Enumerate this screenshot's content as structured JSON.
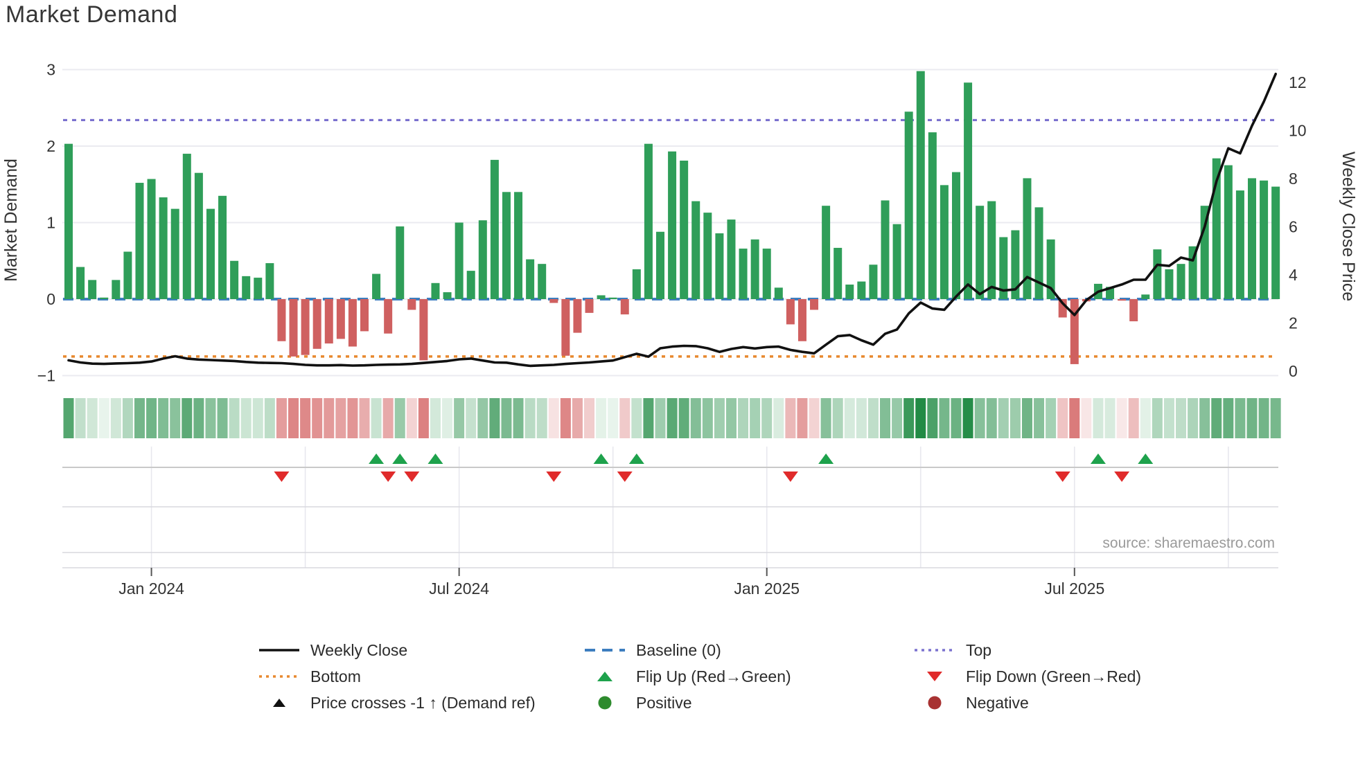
{
  "title": "Market Demand",
  "source_note": "source: sharemaestro.com",
  "axes": {
    "left_label": "Market Demand",
    "right_label": "Weekly Close Price",
    "left_ticks": [
      3,
      2,
      1,
      0,
      -1
    ],
    "right_ticks": [
      12,
      10,
      8,
      6,
      4,
      2,
      0
    ],
    "x_ticks": [
      "Jan 2024",
      "Jul 2024",
      "Jan 2025",
      "Jul 2025"
    ]
  },
  "colors": {
    "bar_positive": "#2f9e59",
    "bar_negative": "#cf6060",
    "weekly_close": "#111111",
    "baseline": "#3d7ebf",
    "top_line": "#7b72cf",
    "bottom_line": "#e8892f",
    "flip_up": "#1ea24c",
    "flip_down": "#e02b2b",
    "positive_dot": "#2e8b2e",
    "negative_dot": "#a83232",
    "heat_pos_max": "#228b45",
    "heat_neg_max": "#d97676",
    "grid": "#ebebf0",
    "panel_border": "#d8d8de",
    "marker_midline": "#c9c9c9",
    "axis_text": "#333333",
    "source_text": "#9a9a9a"
  },
  "legend": {
    "items": [
      {
        "id": "weekly-close",
        "label": "Weekly Close",
        "swatch": "line-solid",
        "color": "#111111"
      },
      {
        "id": "baseline",
        "label": "Baseline (0)",
        "swatch": "line-dash",
        "color": "#3d7ebf"
      },
      {
        "id": "top",
        "label": "Top",
        "swatch": "line-dot",
        "color": "#7b72cf"
      },
      {
        "id": "bottom",
        "label": "Bottom",
        "swatch": "line-dot",
        "color": "#e8892f"
      },
      {
        "id": "flip-up",
        "label": "Flip Up (Red→Green)",
        "swatch": "tri-up",
        "color": "#1ea24c"
      },
      {
        "id": "flip-down",
        "label": "Flip Down (Green→Red)",
        "swatch": "tri-down",
        "color": "#e02b2b"
      },
      {
        "id": "price-cross",
        "label": "Price crosses -1 ↑ (Demand ref)",
        "swatch": "tri-up-small",
        "color": "#111111"
      },
      {
        "id": "positive",
        "label": "Positive",
        "swatch": "circle",
        "color": "#2e8b2e"
      },
      {
        "id": "negative",
        "label": "Negative",
        "swatch": "circle",
        "color": "#a83232"
      }
    ]
  },
  "chart_data": {
    "type": "bar",
    "subtype": "weekly combo: demand bars (left axis) + close price line (right axis) + heatmap strip + flip markers",
    "title": "Market Demand",
    "xlabel": "",
    "ylabel_left": "Market Demand",
    "ylabel_right": "Weekly Close Price",
    "ylim_left": [
      -1.15,
      3.25
    ],
    "ylim_right": [
      0,
      12.5
    ],
    "grid": "horizontal-main, quarterly-vertical-subpanels",
    "legend_position": "bottom, 3 columns",
    "x_tick_labels": [
      "Jan 2024",
      "Jul 2024",
      "Jan 2025",
      "Jul 2025"
    ],
    "x_tick_week_index": [
      7,
      33,
      59,
      85
    ],
    "minor_tick_week_index": [
      7,
      20,
      33,
      46,
      59,
      72,
      85,
      98
    ],
    "top_line": 2.34,
    "baseline": 0,
    "bottom_line": -0.75,
    "series": [
      {
        "name": "Market Demand (weekly bars)",
        "values": [
          2.03,
          0.42,
          0.25,
          0.02,
          0.25,
          0.62,
          1.52,
          1.57,
          1.33,
          1.18,
          1.9,
          1.65,
          1.18,
          1.35,
          0.5,
          0.3,
          0.28,
          0.47,
          -0.55,
          -0.75,
          -0.73,
          -0.65,
          -0.58,
          -0.52,
          -0.62,
          -0.42,
          0.33,
          -0.45,
          0.95,
          -0.14,
          -0.8,
          0.21,
          0.09,
          1.0,
          0.37,
          1.03,
          1.82,
          1.4,
          1.4,
          0.52,
          0.46,
          -0.05,
          -0.74,
          -0.44,
          -0.18,
          0.05,
          0.02,
          -0.2,
          0.39,
          2.03,
          0.88,
          1.93,
          1.81,
          1.28,
          1.13,
          0.86,
          1.04,
          0.66,
          0.78,
          0.66,
          0.15,
          -0.33,
          -0.55,
          -0.14,
          1.22,
          0.67,
          0.19,
          0.23,
          0.45,
          1.29,
          0.98,
          2.45,
          2.98,
          2.18,
          1.49,
          1.66,
          2.83,
          1.22,
          1.28,
          0.81,
          0.9,
          1.58,
          1.2,
          0.78,
          -0.24,
          -0.85,
          -0.03,
          0.2,
          0.16,
          -0.02,
          -0.29,
          0.06,
          0.65,
          0.39,
          0.46,
          0.69,
          1.22,
          1.84,
          1.75,
          1.42,
          1.58,
          1.55,
          1.47
        ]
      },
      {
        "name": "Weekly Close",
        "values": [
          0.45,
          0.36,
          0.31,
          0.3,
          0.32,
          0.33,
          0.35,
          0.4,
          0.52,
          0.62,
          0.52,
          0.48,
          0.46,
          0.44,
          0.42,
          0.38,
          0.35,
          0.34,
          0.33,
          0.3,
          0.26,
          0.24,
          0.24,
          0.25,
          0.23,
          0.24,
          0.26,
          0.27,
          0.28,
          0.3,
          0.34,
          0.38,
          0.42,
          0.49,
          0.52,
          0.44,
          0.36,
          0.35,
          0.28,
          0.22,
          0.24,
          0.26,
          0.3,
          0.33,
          0.36,
          0.4,
          0.44,
          0.58,
          0.72,
          0.6,
          0.95,
          1.02,
          1.05,
          1.04,
          0.95,
          0.8,
          0.92,
          1.0,
          0.94,
          1.0,
          1.02,
          0.88,
          0.8,
          0.74,
          1.1,
          1.45,
          1.5,
          1.28,
          1.1,
          1.55,
          1.73,
          2.4,
          2.85,
          2.6,
          2.55,
          3.1,
          3.6,
          3.2,
          3.5,
          3.35,
          3.4,
          3.91,
          3.68,
          3.45,
          2.82,
          2.33,
          2.95,
          3.3,
          3.45,
          3.6,
          3.8,
          3.8,
          4.42,
          4.37,
          4.72,
          4.6,
          6.0,
          7.9,
          9.26,
          9.05,
          10.2,
          11.2,
          12.35
        ]
      }
    ],
    "flip_up_weeks": [
      26,
      28,
      31,
      45,
      48,
      64,
      87,
      91
    ],
    "flip_down_weeks": [
      18,
      27,
      29,
      41,
      47,
      61,
      84,
      89
    ],
    "price_cross_weeks": []
  }
}
